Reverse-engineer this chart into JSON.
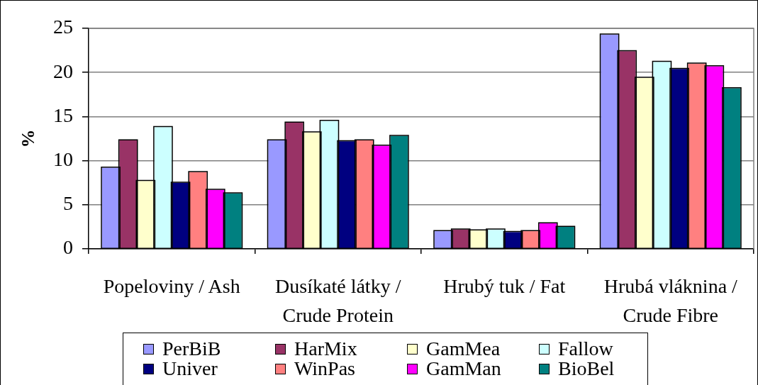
{
  "chart_data": {
    "type": "bar",
    "ylabel": "%",
    "categories": [
      "Popeloviny / Ash",
      "Dusíkaté látky / Crude Protein",
      "Hrubý tuk / Fat",
      "Hrubá vláknina / Crude Fibre"
    ],
    "series": [
      {
        "name": "PerBiB",
        "color": "#9999ff",
        "values": [
          9.2,
          12.3,
          2.0,
          24.3
        ]
      },
      {
        "name": "HarMix",
        "color": "#993366",
        "values": [
          12.3,
          14.3,
          2.2,
          22.4
        ]
      },
      {
        "name": "GamMea",
        "color": "#ffffcc",
        "values": [
          7.7,
          13.2,
          2.1,
          19.4
        ]
      },
      {
        "name": "Fallow",
        "color": "#ccffff",
        "values": [
          13.8,
          14.5,
          2.2,
          21.2
        ]
      },
      {
        "name": "Univer",
        "color": "#000080",
        "values": [
          7.5,
          12.2,
          1.9,
          20.4
        ]
      },
      {
        "name": "WinPas",
        "color": "#ff8080",
        "values": [
          8.7,
          12.3,
          2.0,
          21.0
        ]
      },
      {
        "name": "GamMan",
        "color": "#ff00ff",
        "values": [
          6.7,
          11.7,
          2.9,
          20.7
        ]
      },
      {
        "name": "BioBel",
        "color": "#008080",
        "values": [
          6.3,
          12.8,
          2.5,
          18.2
        ]
      }
    ],
    "ylim": [
      0,
      25
    ],
    "yticks": [
      0,
      5,
      10,
      15,
      20,
      25
    ],
    "grid": "y",
    "legend": "bottom"
  }
}
